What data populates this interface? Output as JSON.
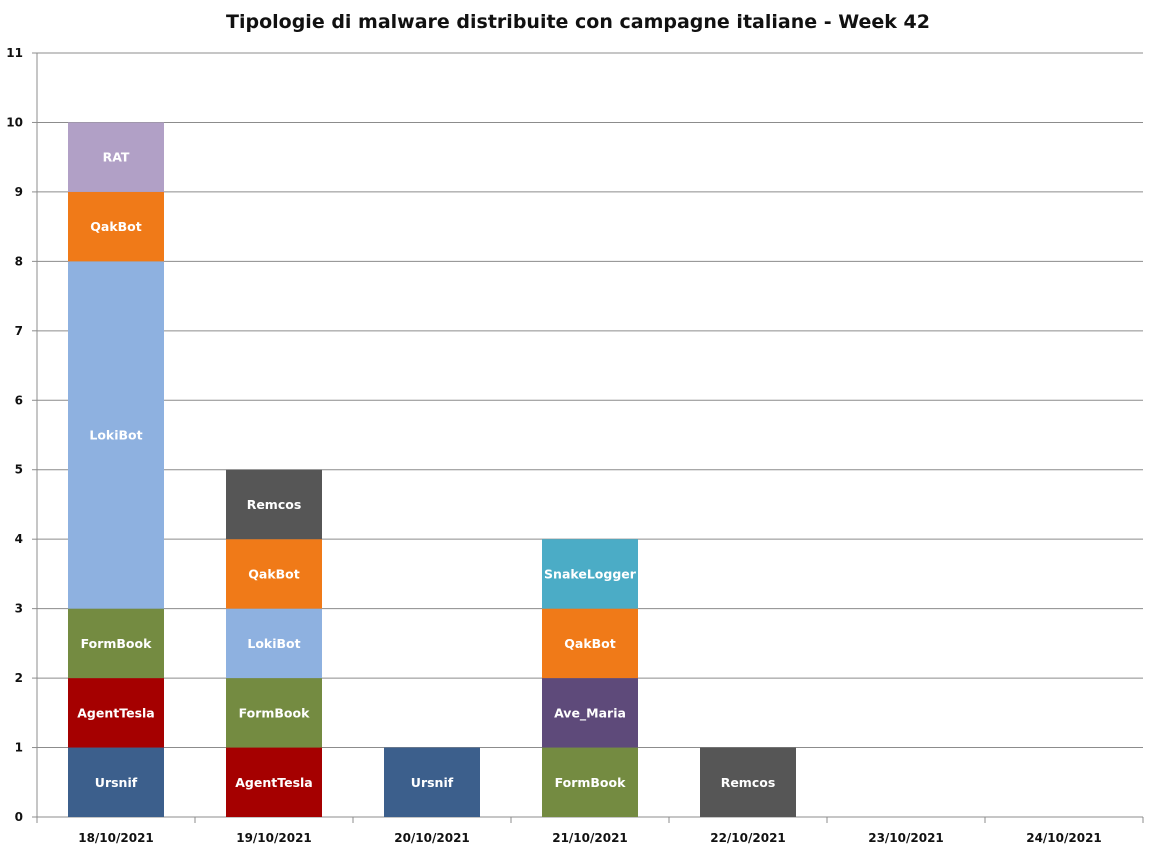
{
  "chart_data": {
    "type": "bar",
    "stacked": true,
    "title": "Tipologie di malware distribuite con campagne italiane - Week 42",
    "xlabel": "",
    "ylabel": "",
    "ylim": [
      0,
      11
    ],
    "yticks": [
      "0",
      "1",
      "2",
      "3",
      "4",
      "5",
      "6",
      "7",
      "8",
      "9",
      "10",
      "11"
    ],
    "grid": true,
    "legend": "none",
    "categories": [
      "18/10/2021",
      "19/10/2021",
      "20/10/2021",
      "21/10/2021",
      "22/10/2021",
      "23/10/2021",
      "24/10/2021"
    ],
    "colors": {
      "Ursnif": "#3c5f8c",
      "AgentTesla": "#a50000",
      "FormBook": "#748b41",
      "LokiBot": "#8eb1e0",
      "QakBot": "#f07a18",
      "RAT": "#b1a0c6",
      "Remcos": "#565656",
      "Ave_Maria": "#5e4a7a",
      "SnakeLogger": "#4bacc6"
    },
    "stacks": [
      [
        {
          "name": "Ursnif",
          "value": 1
        },
        {
          "name": "AgentTesla",
          "value": 1
        },
        {
          "name": "FormBook",
          "value": 1
        },
        {
          "name": "LokiBot",
          "value": 5
        },
        {
          "name": "QakBot",
          "value": 1
        },
        {
          "name": "RAT",
          "value": 1
        }
      ],
      [
        {
          "name": "AgentTesla",
          "value": 1
        },
        {
          "name": "FormBook",
          "value": 1
        },
        {
          "name": "LokiBot",
          "value": 1
        },
        {
          "name": "QakBot",
          "value": 1
        },
        {
          "name": "Remcos",
          "value": 1
        }
      ],
      [
        {
          "name": "Ursnif",
          "value": 1
        }
      ],
      [
        {
          "name": "FormBook",
          "value": 1
        },
        {
          "name": "Ave_Maria",
          "value": 1
        },
        {
          "name": "QakBot",
          "value": 1
        },
        {
          "name": "SnakeLogger",
          "value": 1
        }
      ],
      [
        {
          "name": "Remcos",
          "value": 1
        }
      ],
      [],
      []
    ]
  }
}
